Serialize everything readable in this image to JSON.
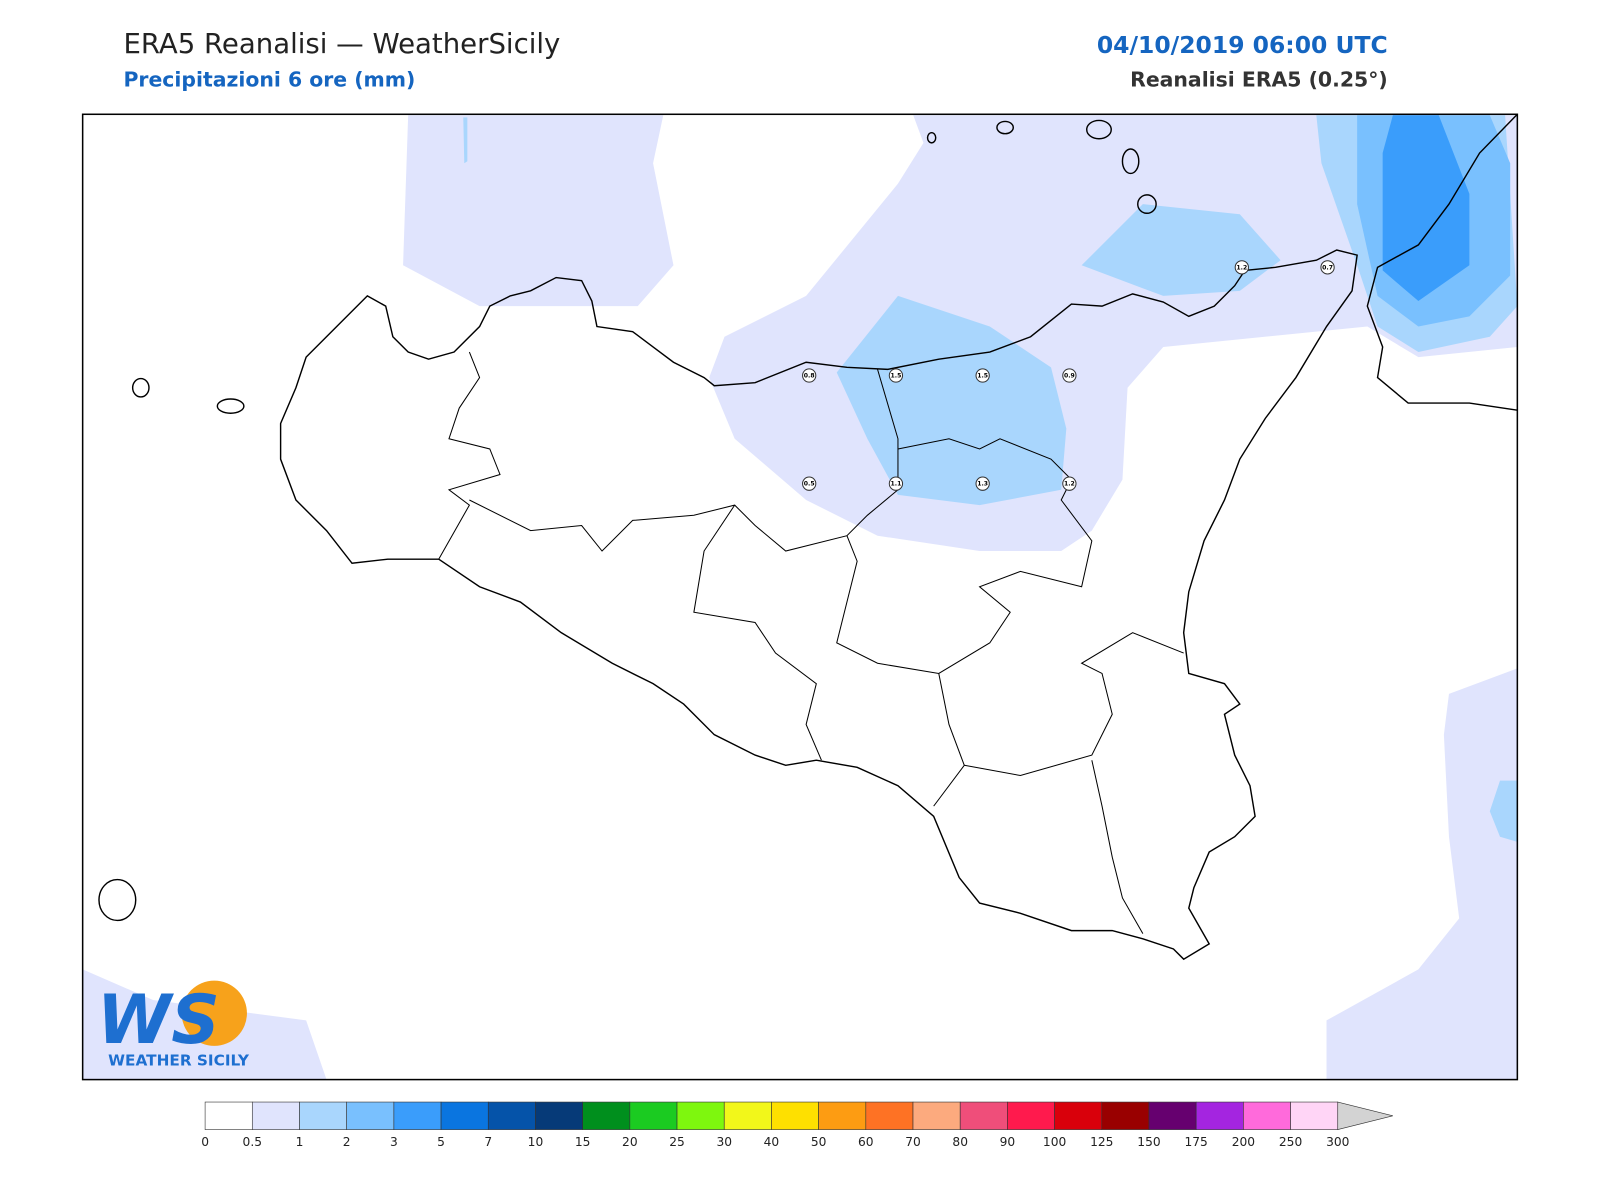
{
  "header": {
    "title": "ERA5 Reanalisi — WeatherSicily",
    "subtitle": "Precipitazioni 6 ore (mm)",
    "date": "04/10/2019 06:00 UTC",
    "product": "Reanalisi ERA5 (0.25°)"
  },
  "stations": [
    1.2,
    0.7,
    0.8,
    1.5,
    1.5,
    0.9,
    0.5,
    1.1,
    1.3,
    1.2
  ],
  "logo": {
    "mark": "WS",
    "text": "WEATHER SICILY"
  },
  "legend": {
    "levels": [
      0,
      0.5,
      1,
      2,
      3,
      5,
      7,
      10,
      15,
      20,
      25,
      30,
      40,
      50,
      60,
      70,
      80,
      90,
      100,
      125,
      150,
      175,
      200,
      250,
      300
    ],
    "colors": [
      "#ffffff",
      "#e0e4fd",
      "#a9d6fd",
      "#79c0fe",
      "#3a9dfb",
      "#0a75e0",
      "#0553a9",
      "#063a78",
      "#008f1d",
      "#1bcb21",
      "#7ef70e",
      "#f2f71a",
      "#fee000",
      "#fd9c12",
      "#fe7224",
      "#fcaa7e",
      "#ef4e7a",
      "#ff1a4d",
      "#d9000b",
      "#990000",
      "#66006f",
      "#a425e0",
      "#ff6adb",
      "#ffd5f6"
    ],
    "over_color": "#d3d3d3"
  }
}
